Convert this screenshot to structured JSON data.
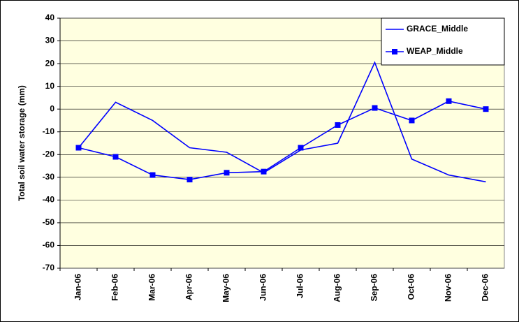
{
  "chart_data": {
    "type": "line",
    "ylabel": "Total soil water storage (mm)",
    "categories": [
      "Jan-06",
      "Feb-06",
      "Mar-06",
      "Apr-06",
      "May-06",
      "Jun-06",
      "Jul-06",
      "Aug-06",
      "Sep-06",
      "Oct-06",
      "Nov-06",
      "Dec-06"
    ],
    "series": [
      {
        "name": "GRACE_Middle",
        "color": "#0000ff",
        "marker": "none",
        "values": [
          -17,
          3,
          -5,
          -17,
          -19,
          -28,
          -18,
          -15,
          20.5,
          -22,
          -29,
          -32
        ]
      },
      {
        "name": "WEAP_Middle",
        "color": "#0000ff",
        "marker": "square",
        "values": [
          -17,
          -21,
          -29,
          -31,
          -28,
          -27.5,
          -17,
          -7,
          0.5,
          -5,
          3.5,
          0
        ]
      }
    ],
    "ylim": [
      -70,
      40
    ],
    "yticks": [
      -70,
      -60,
      -50,
      -40,
      -30,
      -20,
      -10,
      0,
      10,
      20,
      30,
      40
    ],
    "grid": true,
    "legend": "upper right"
  }
}
